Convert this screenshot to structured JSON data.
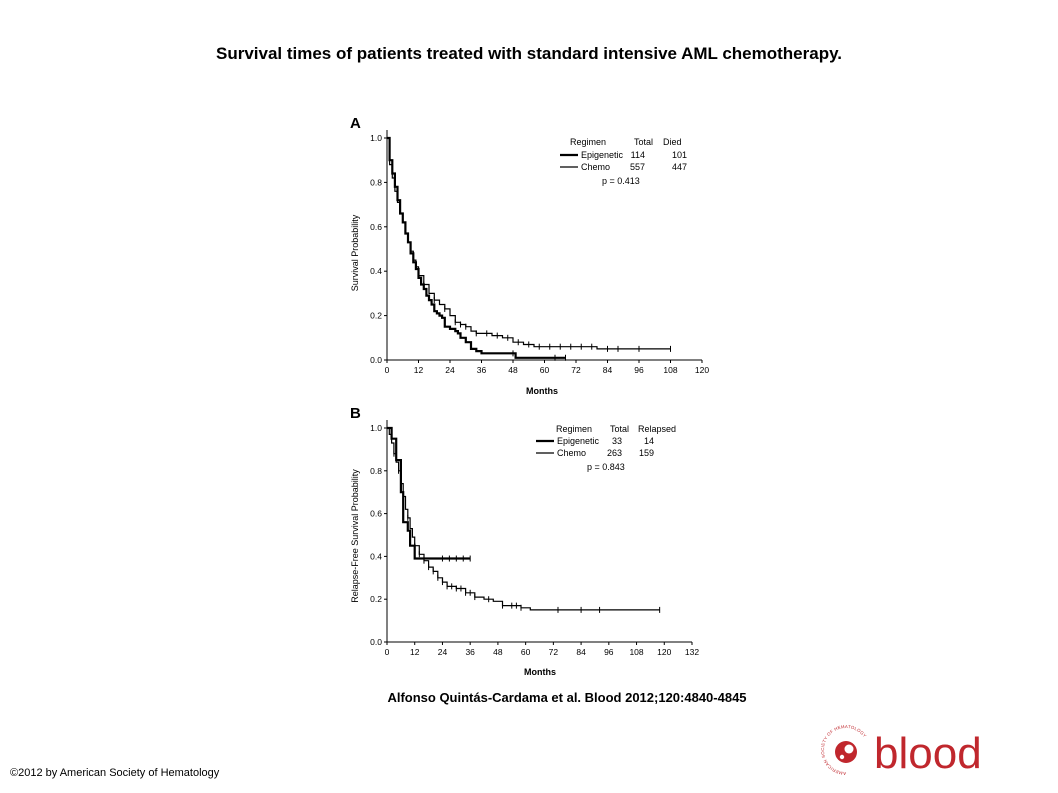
{
  "slide": {
    "title": "Survival times of patients treated with standard intensive AML chemotherapy.",
    "citation": "Alfonso Quintás-Cardama et al. Blood 2012;120:4840-4845",
    "copyright": "©2012 by American Society of Hematology",
    "logo_text": "blood",
    "logo_ring_text": "AMERICAN SOCIETY OF HEMATOLOGY",
    "logo_color": "#c0272d"
  },
  "chart_data": [
    {
      "panel": "A",
      "type": "line",
      "xlabel": "Months",
      "ylabel": "Survival Probability",
      "xlim": [
        0,
        120
      ],
      "ylim": [
        0,
        1
      ],
      "xticks": [
        "0",
        "12",
        "24",
        "36",
        "48",
        "60",
        "72",
        "84",
        "96",
        "108",
        "120"
      ],
      "yticks": [
        "0.0",
        "0.2",
        "0.4",
        "0.6",
        "0.8",
        "1.0"
      ],
      "legend": {
        "headers": [
          "Regimen",
          "Total",
          "Died"
        ],
        "rows": [
          {
            "name": "Epigenetic",
            "total": "114",
            "count": "101"
          },
          {
            "name": "Chemo",
            "total": "557",
            "count": "447"
          }
        ],
        "pvalue": "p = 0.413"
      },
      "series": [
        {
          "name": "Epigenetic",
          "stroke_width": 2.2,
          "x": [
            0,
            1,
            2,
            3,
            4,
            5,
            6,
            7,
            8,
            9,
            10,
            11,
            12,
            13,
            14,
            15,
            16,
            17,
            18,
            19,
            20,
            21,
            22,
            24,
            26,
            27,
            28,
            30,
            32,
            34,
            36,
            38,
            40,
            48,
            49,
            68
          ],
          "y": [
            1.0,
            0.9,
            0.84,
            0.78,
            0.72,
            0.66,
            0.62,
            0.57,
            0.53,
            0.48,
            0.44,
            0.41,
            0.37,
            0.34,
            0.32,
            0.29,
            0.27,
            0.25,
            0.22,
            0.21,
            0.2,
            0.19,
            0.15,
            0.14,
            0.13,
            0.12,
            0.1,
            0.08,
            0.05,
            0.04,
            0.03,
            0.03,
            0.03,
            0.03,
            0.01,
            0.01
          ],
          "censored": [
            48,
            64,
            68
          ]
        },
        {
          "name": "Chemo",
          "stroke_width": 1.2,
          "x": [
            0,
            1,
            2,
            3,
            4,
            5,
            6,
            7,
            8,
            9,
            10,
            11,
            12,
            14,
            16,
            18,
            20,
            22,
            24,
            26,
            28,
            30,
            32,
            34,
            36,
            40,
            44,
            48,
            52,
            56,
            60,
            70,
            80,
            96,
            108
          ],
          "y": [
            1.0,
            0.88,
            0.82,
            0.76,
            0.71,
            0.66,
            0.62,
            0.57,
            0.53,
            0.49,
            0.45,
            0.42,
            0.38,
            0.34,
            0.3,
            0.27,
            0.25,
            0.23,
            0.2,
            0.17,
            0.16,
            0.15,
            0.13,
            0.12,
            0.12,
            0.11,
            0.1,
            0.08,
            0.07,
            0.06,
            0.06,
            0.06,
            0.05,
            0.05,
            0.05
          ],
          "censored": [
            14,
            18,
            22,
            26,
            28,
            30,
            34,
            38,
            42,
            46,
            50,
            54,
            58,
            62,
            66,
            70,
            74,
            78,
            84,
            88,
            96,
            108
          ]
        }
      ]
    },
    {
      "panel": "B",
      "type": "line",
      "xlabel": "Months",
      "ylabel": "Relapse-Free Survival Probability",
      "xlim": [
        0,
        132
      ],
      "ylim": [
        0,
        1
      ],
      "xticks": [
        "0",
        "12",
        "24",
        "36",
        "48",
        "60",
        "72",
        "84",
        "96",
        "108",
        "120",
        "132"
      ],
      "yticks": [
        "0.0",
        "0.2",
        "0.4",
        "0.6",
        "0.8",
        "1.0"
      ],
      "legend": {
        "headers": [
          "Regimen",
          "Total",
          "Relapsed"
        ],
        "rows": [
          {
            "name": "Epigenetic",
            "total": "33",
            "count": "14"
          },
          {
            "name": "Chemo",
            "total": "263",
            "count": "159"
          }
        ],
        "pvalue": "p = 0.843"
      },
      "series": [
        {
          "name": "Epigenetic",
          "stroke_width": 2.2,
          "x": [
            0,
            2,
            4,
            6,
            7,
            8,
            9,
            10,
            11,
            12,
            13,
            36
          ],
          "y": [
            1.0,
            0.95,
            0.85,
            0.7,
            0.56,
            0.56,
            0.52,
            0.45,
            0.45,
            0.39,
            0.39,
            0.39
          ],
          "censored": [
            24,
            27,
            30,
            33,
            36
          ]
        },
        {
          "name": "Chemo",
          "stroke_width": 1.2,
          "x": [
            0,
            1,
            2,
            3,
            4,
            5,
            6,
            7,
            8,
            9,
            10,
            11,
            12,
            14,
            16,
            18,
            20,
            22,
            24,
            26,
            30,
            34,
            38,
            42,
            46,
            50,
            54,
            58,
            62,
            70,
            80,
            100,
            118
          ],
          "y": [
            1.0,
            0.97,
            0.93,
            0.88,
            0.84,
            0.8,
            0.74,
            0.68,
            0.62,
            0.58,
            0.53,
            0.49,
            0.45,
            0.41,
            0.38,
            0.35,
            0.33,
            0.3,
            0.28,
            0.26,
            0.25,
            0.23,
            0.21,
            0.2,
            0.19,
            0.17,
            0.17,
            0.16,
            0.15,
            0.15,
            0.15,
            0.15,
            0.15
          ],
          "censored": [
            3,
            5,
            7,
            9,
            12,
            14,
            16,
            18,
            20,
            22,
            24,
            26,
            28,
            30,
            32,
            34,
            36,
            38,
            44,
            50,
            54,
            56,
            58,
            74,
            84,
            92,
            118
          ]
        }
      ]
    }
  ]
}
